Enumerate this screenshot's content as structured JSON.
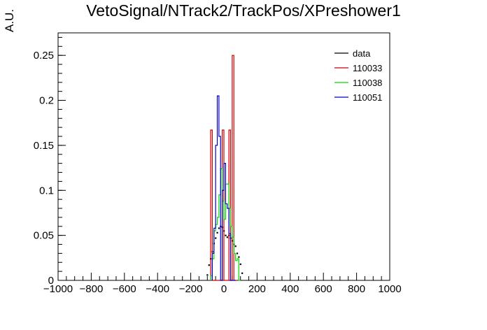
{
  "chart_data": {
    "type": "histogram",
    "title": "VetoSignal/NTrack2/TrackPos/XPreshower1",
    "xlabel": "",
    "ylabel": "A.U.",
    "xlim": [
      -1000,
      1000
    ],
    "ylim": [
      0,
      0.275
    ],
    "grid": false,
    "legend_position": "top-right",
    "x_ticks": [
      -1000,
      -800,
      -600,
      -400,
      -200,
      0,
      200,
      400,
      600,
      800,
      1000
    ],
    "x_tick_labels": [
      "−1000",
      "−800",
      "−600",
      "−400",
      "−200",
      "0",
      "200",
      "400",
      "600",
      "800",
      "1000"
    ],
    "y_ticks": [
      0,
      0.05,
      0.1,
      0.15,
      0.2,
      0.25
    ],
    "y_tick_labels": [
      "0",
      "0.05",
      "0.1",
      "0.15",
      "0.2",
      "0.25"
    ],
    "series": [
      {
        "name": "data",
        "color": "#000000",
        "style": "points",
        "points": [
          [
            -100,
            0.006
          ],
          [
            -90,
            0.017
          ],
          [
            -80,
            0.024
          ],
          [
            -70,
            0.032
          ],
          [
            -60,
            0.041
          ],
          [
            -50,
            0.047
          ],
          [
            -40,
            0.053
          ],
          [
            -30,
            0.058
          ],
          [
            -20,
            0.06
          ],
          [
            -10,
            0.059
          ],
          [
            0,
            0.055
          ],
          [
            10,
            0.05
          ],
          [
            20,
            0.048
          ],
          [
            30,
            0.05
          ],
          [
            40,
            0.047
          ],
          [
            50,
            0.044
          ],
          [
            60,
            0.04
          ],
          [
            70,
            0.038
          ],
          [
            80,
            0.03
          ],
          [
            90,
            0.026
          ],
          [
            100,
            0.018
          ],
          [
            110,
            0.008
          ]
        ]
      },
      {
        "name": "110033",
        "color": "#cc0000",
        "style": "step",
        "bin_edges": [
          -80,
          -70,
          -60,
          -50,
          -40,
          -30,
          -20,
          -10,
          0,
          10,
          20,
          30,
          40,
          50,
          60,
          70,
          80
        ],
        "values": [
          0.167,
          0.0,
          0.0,
          0.0,
          0.0,
          0.0,
          0.0,
          0.167,
          0.0,
          0.0,
          0.0,
          0.167,
          0.0,
          0.25,
          0.0,
          0.0
        ]
      },
      {
        "name": "110038",
        "color": "#00dd00",
        "style": "step",
        "bin_edges": [
          -80,
          -70,
          -60,
          -50,
          -40,
          -30,
          -20,
          -10,
          0,
          10,
          20,
          30,
          40,
          50,
          60,
          70,
          80,
          90,
          100
        ],
        "values": [
          0.005,
          0.024,
          0.055,
          0.062,
          0.07,
          0.095,
          0.124,
          0.088,
          0.068,
          0.107,
          0.107,
          0.08,
          0.06,
          0.048,
          0.03,
          0.022,
          0.024,
          0.0
        ]
      },
      {
        "name": "110051",
        "color": "#0000cc",
        "style": "step",
        "bin_edges": [
          -70,
          -60,
          -50,
          -40,
          -30,
          -20,
          -10,
          0,
          10,
          20,
          30,
          40,
          50,
          60,
          70
        ],
        "values": [
          0.03,
          0.058,
          0.15,
          0.205,
          0.16,
          0.0,
          0.1,
          0.13,
          0.085,
          0.08,
          0.052,
          0.0,
          0.0,
          0.0
        ]
      }
    ]
  }
}
